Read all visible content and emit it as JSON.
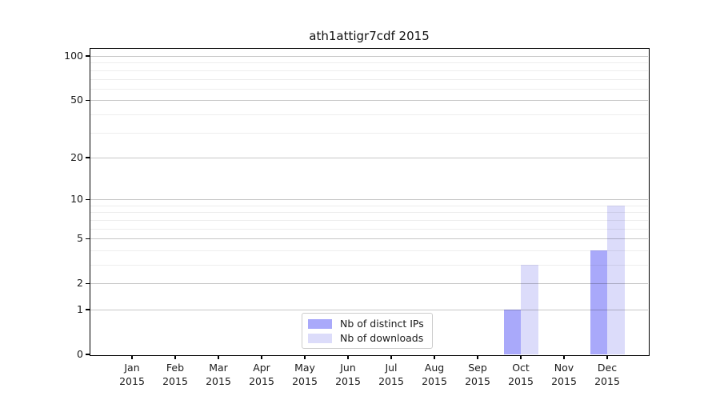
{
  "chart_data": {
    "type": "bar",
    "title": "ath1attigr7cdf 2015",
    "categories": [
      "Jan 2015",
      "Feb 2015",
      "Mar 2015",
      "Apr 2015",
      "May 2015",
      "Jun 2015",
      "Jul 2015",
      "Aug 2015",
      "Sep 2015",
      "Oct 2015",
      "Nov 2015",
      "Dec 2015"
    ],
    "series": [
      {
        "name": "Nb of distinct IPs",
        "color": "#a9a9fa",
        "values": [
          0,
          0,
          0,
          0,
          0,
          0,
          0,
          0,
          0,
          1,
          0,
          4
        ]
      },
      {
        "name": "Nb of downloads",
        "color": "#dcdcfa",
        "values": [
          0,
          0,
          0,
          0,
          0,
          0,
          0,
          0,
          0,
          3,
          0,
          9
        ]
      }
    ],
    "xlabel": "",
    "ylabel": "",
    "y_scale": "log1p",
    "ylim": [
      0,
      112
    ],
    "y_major_ticks": [
      0,
      1,
      2,
      5,
      10,
      20,
      50,
      100
    ],
    "y_minor_gridlines": [
      3,
      4,
      6,
      7,
      8,
      9,
      30,
      40,
      60,
      70,
      80,
      90
    ],
    "grid": "horizontal",
    "legend_position": "lower center",
    "colors": {
      "major_grid": "rgba(0,0,0,0.22)",
      "minor_grid": "rgba(0,0,0,0.07)",
      "spine": "#000000",
      "background": "#ffffff",
      "text": "#1a1a1a",
      "legend_border": "#cccccc"
    }
  }
}
